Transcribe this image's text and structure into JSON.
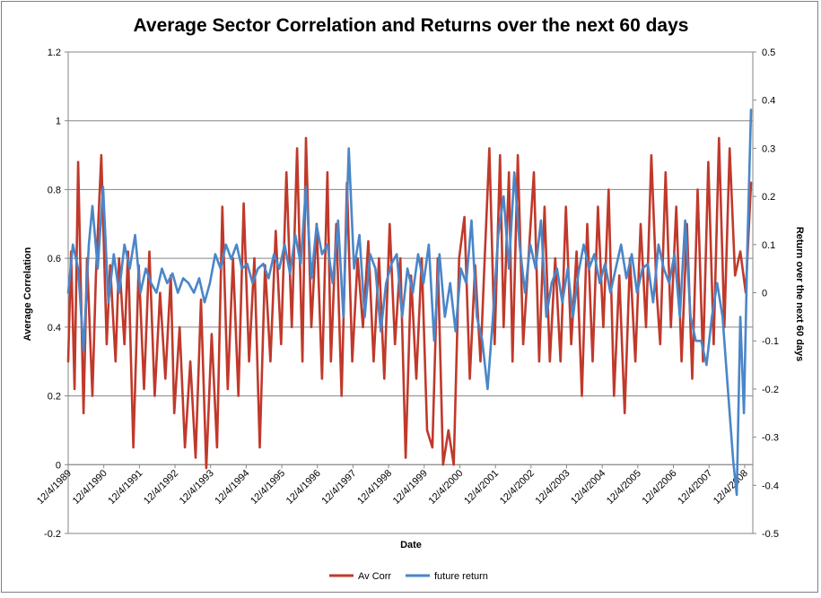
{
  "chart_data": {
    "type": "line",
    "title": "Average Sector Correlation and Returns over the next 60 days",
    "xlabel": "Date",
    "ylabel_left": "Average Correlation",
    "ylabel_right": "Return over the next  60 days",
    "y_left_lim": [
      -0.2,
      1.2
    ],
    "y_right_lim": [
      -0.5,
      0.5
    ],
    "y_left_ticks": [
      "-0.2",
      "0",
      "0.2",
      "0.4",
      "0.6",
      "0.8",
      "1",
      "1.2"
    ],
    "y_right_ticks": [
      "-0.5",
      "-0.4",
      "-0.3",
      "-0.2",
      "-0.1",
      "0",
      "0.1",
      "0.2",
      "0.3",
      "0.4",
      "0.5"
    ],
    "x_ticks": [
      "12/4/1989",
      "12/4/1990",
      "12/4/1991",
      "12/4/1992",
      "12/4/1993",
      "12/4/1994",
      "12/4/1995",
      "12/4/1996",
      "12/4/1997",
      "12/4/1998",
      "12/4/1999",
      "12/4/2000",
      "12/4/2001",
      "12/4/2002",
      "12/4/2003",
      "12/4/2004",
      "12/4/2005",
      "12/4/2006",
      "12/4/2007",
      "12/4/2008"
    ],
    "grid": "horizontal",
    "legend_position": "bottom",
    "series": [
      {
        "name": "Av Corr",
        "axis": "left",
        "color": "#C0392B",
        "x": [
          1989.92,
          1990.0,
          1990.1,
          1990.2,
          1990.35,
          1990.45,
          1990.6,
          1990.7,
          1990.85,
          1991.0,
          1991.1,
          1991.25,
          1991.35,
          1991.5,
          1991.6,
          1991.75,
          1991.9,
          1992.05,
          1992.2,
          1992.35,
          1992.5,
          1992.65,
          1992.8,
          1992.9,
          1993.05,
          1993.2,
          1993.35,
          1993.5,
          1993.65,
          1993.8,
          1993.95,
          1994.1,
          1994.25,
          1994.4,
          1994.55,
          1994.7,
          1994.85,
          1995.0,
          1995.15,
          1995.3,
          1995.45,
          1995.6,
          1995.75,
          1995.9,
          1996.05,
          1996.2,
          1996.35,
          1996.5,
          1996.6,
          1996.75,
          1996.9,
          1997.05,
          1997.2,
          1997.3,
          1997.45,
          1997.6,
          1997.75,
          1997.9,
          1998.05,
          1998.2,
          1998.35,
          1998.5,
          1998.65,
          1998.8,
          1998.95,
          1999.1,
          1999.25,
          1999.4,
          1999.55,
          1999.7,
          1999.85,
          2000.0,
          2000.15,
          2000.3,
          2000.45,
          2000.6,
          2000.75,
          2000.9,
          2001.05,
          2001.2,
          2001.35,
          2001.5,
          2001.6,
          2001.75,
          2001.9,
          2002.05,
          2002.15,
          2002.3,
          2002.4,
          2002.55,
          2002.7,
          2002.85,
          2003.0,
          2003.15,
          2003.3,
          2003.45,
          2003.6,
          2003.75,
          2003.9,
          2004.05,
          2004.2,
          2004.35,
          2004.5,
          2004.65,
          2004.8,
          2004.95,
          2005.1,
          2005.25,
          2005.4,
          2005.55,
          2005.7,
          2005.85,
          2006.0,
          2006.15,
          2006.3,
          2006.45,
          2006.55,
          2006.7,
          2006.85,
          2007.0,
          2007.15,
          2007.3,
          2007.45,
          2007.6,
          2007.75,
          2007.9,
          2008.05,
          2008.2,
          2008.35,
          2008.5,
          2008.65,
          2008.8,
          2008.95,
          2009.1
        ],
        "y": [
          0.3,
          0.62,
          0.22,
          0.88,
          0.15,
          0.6,
          0.2,
          0.55,
          0.9,
          0.35,
          0.58,
          0.3,
          0.6,
          0.35,
          0.62,
          0.05,
          0.58,
          0.22,
          0.62,
          0.2,
          0.5,
          0.25,
          0.55,
          0.15,
          0.4,
          0.05,
          0.3,
          0.02,
          0.48,
          -0.01,
          0.38,
          0.05,
          0.75,
          0.22,
          0.6,
          0.2,
          0.76,
          0.3,
          0.6,
          0.05,
          0.58,
          0.3,
          0.68,
          0.35,
          0.85,
          0.4,
          0.92,
          0.3,
          0.95,
          0.4,
          0.7,
          0.25,
          0.85,
          0.3,
          0.7,
          0.2,
          0.82,
          0.3,
          0.6,
          0.4,
          0.65,
          0.3,
          0.6,
          0.25,
          0.7,
          0.35,
          0.6,
          0.02,
          0.55,
          0.25,
          0.6,
          0.1,
          0.05,
          0.6,
          0.0,
          0.1,
          0.0,
          0.6,
          0.72,
          0.25,
          0.58,
          0.3,
          0.55,
          0.92,
          0.35,
          0.9,
          0.4,
          0.85,
          0.3,
          0.9,
          0.35,
          0.6,
          0.85,
          0.3,
          0.75,
          0.3,
          0.6,
          0.3,
          0.75,
          0.35,
          0.62,
          0.2,
          0.7,
          0.3,
          0.75,
          0.4,
          0.8,
          0.2,
          0.55,
          0.15,
          0.6,
          0.3,
          0.7,
          0.4,
          0.9,
          0.5,
          0.35,
          0.85,
          0.4,
          0.75,
          0.3,
          0.7,
          0.25,
          0.8,
          0.3,
          0.88,
          0.35,
          0.95,
          0.4,
          0.92,
          0.55,
          0.62,
          0.5,
          0.82
        ]
      },
      {
        "name": "future return",
        "axis": "right",
        "color": "#4A86C8",
        "x": [
          1989.92,
          1990.05,
          1990.2,
          1990.35,
          1990.5,
          1990.6,
          1990.75,
          1990.9,
          1991.05,
          1991.2,
          1991.35,
          1991.5,
          1991.65,
          1991.8,
          1991.95,
          1992.1,
          1992.25,
          1992.4,
          1992.55,
          1992.7,
          1992.85,
          1993.0,
          1993.15,
          1993.3,
          1993.45,
          1993.6,
          1993.75,
          1993.9,
          1994.05,
          1994.2,
          1994.35,
          1994.5,
          1994.65,
          1994.8,
          1994.95,
          1995.1,
          1995.25,
          1995.4,
          1995.55,
          1995.7,
          1995.85,
          1996.0,
          1996.15,
          1996.3,
          1996.45,
          1996.6,
          1996.75,
          1996.9,
          1997.05,
          1997.2,
          1997.35,
          1997.5,
          1997.65,
          1997.8,
          1997.95,
          1998.1,
          1998.25,
          1998.4,
          1998.55,
          1998.7,
          1998.85,
          1999.0,
          1999.15,
          1999.3,
          1999.45,
          1999.6,
          1999.75,
          1999.9,
          2000.05,
          2000.2,
          2000.35,
          2000.5,
          2000.65,
          2000.8,
          2000.95,
          2001.1,
          2001.25,
          2001.4,
          2001.55,
          2001.7,
          2001.85,
          2002.0,
          2002.15,
          2002.3,
          2002.45,
          2002.6,
          2002.75,
          2002.9,
          2003.05,
          2003.2,
          2003.35,
          2003.5,
          2003.65,
          2003.8,
          2003.95,
          2004.1,
          2004.25,
          2004.4,
          2004.55,
          2004.7,
          2004.85,
          2005.0,
          2005.15,
          2005.3,
          2005.45,
          2005.6,
          2005.75,
          2005.9,
          2006.05,
          2006.2,
          2006.35,
          2006.5,
          2006.65,
          2006.8,
          2006.95,
          2007.1,
          2007.25,
          2007.4,
          2007.55,
          2007.7,
          2007.85,
          2008.0,
          2008.15,
          2008.3,
          2008.45,
          2008.6,
          2008.7,
          2008.8,
          2008.9,
          2009.0,
          2009.1
        ],
        "y": [
          0.0,
          0.1,
          0.05,
          -0.12,
          0.1,
          0.18,
          0.05,
          0.22,
          -0.02,
          0.08,
          0.0,
          0.1,
          0.05,
          0.12,
          0.0,
          0.05,
          0.02,
          0.0,
          0.05,
          0.02,
          0.04,
          0.0,
          0.03,
          0.02,
          0.0,
          0.03,
          -0.02,
          0.02,
          0.08,
          0.05,
          0.1,
          0.07,
          0.1,
          0.05,
          0.06,
          0.02,
          0.05,
          0.06,
          0.03,
          0.08,
          0.05,
          0.1,
          0.04,
          0.12,
          0.06,
          0.22,
          0.03,
          0.14,
          0.08,
          0.1,
          0.02,
          0.15,
          -0.05,
          0.3,
          0.05,
          0.12,
          -0.05,
          0.08,
          0.05,
          -0.08,
          0.02,
          0.06,
          0.08,
          -0.05,
          0.05,
          0.0,
          0.08,
          0.02,
          0.1,
          -0.1,
          0.08,
          -0.05,
          0.02,
          -0.08,
          0.05,
          0.02,
          0.15,
          -0.05,
          -0.1,
          -0.2,
          -0.05,
          0.12,
          0.2,
          0.05,
          0.25,
          0.1,
          0.0,
          0.1,
          0.05,
          0.15,
          -0.05,
          0.02,
          0.05,
          -0.02,
          0.05,
          -0.05,
          0.04,
          0.1,
          0.05,
          0.08,
          0.02,
          0.06,
          0.0,
          0.05,
          0.1,
          0.03,
          0.08,
          0.0,
          0.05,
          0.06,
          -0.02,
          0.1,
          0.05,
          0.02,
          0.08,
          -0.05,
          0.15,
          -0.05,
          -0.1,
          -0.1,
          -0.15,
          -0.05,
          0.02,
          -0.05,
          -0.2,
          -0.35,
          -0.42,
          -0.05,
          -0.25,
          0.1,
          0.38
        ]
      }
    ]
  }
}
